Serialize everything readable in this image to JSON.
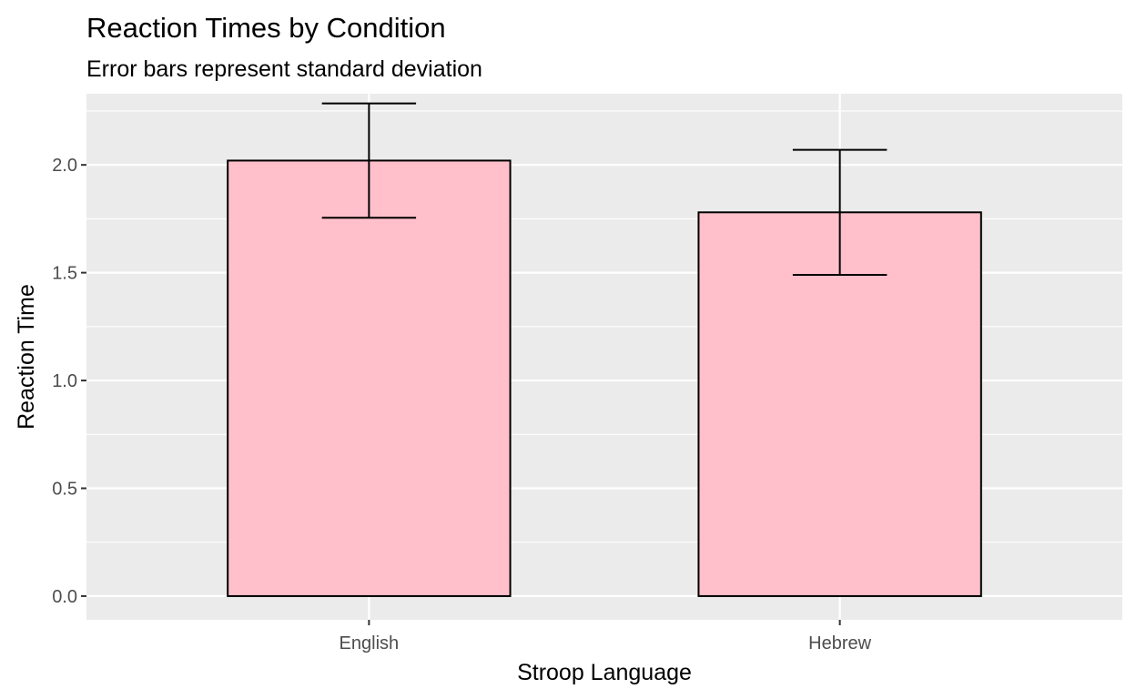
{
  "chart_data": {
    "type": "bar",
    "title": "Reaction Times by Condition",
    "subtitle": "Error bars represent standard deviation",
    "xlabel": "Stroop Language",
    "ylabel": "Reaction Time",
    "categories": [
      "English",
      "Hebrew"
    ],
    "values": [
      2.02,
      1.78
    ],
    "error": [
      0.265,
      0.29
    ],
    "ylim": [
      -0.11,
      2.33
    ],
    "y_ticks": [
      "0.0",
      "0.5",
      "1.0",
      "1.5",
      "2.0"
    ],
    "y_tick_values": [
      0,
      0.5,
      1.0,
      1.5,
      2.0
    ],
    "grid": true,
    "legend": "none",
    "colors": {
      "bar_fill": "#FFC0CB",
      "bar_stroke": "#000000",
      "panel_bg": "#EBEBEB",
      "grid": "#FFFFFF",
      "error_bar": "#000000"
    }
  }
}
